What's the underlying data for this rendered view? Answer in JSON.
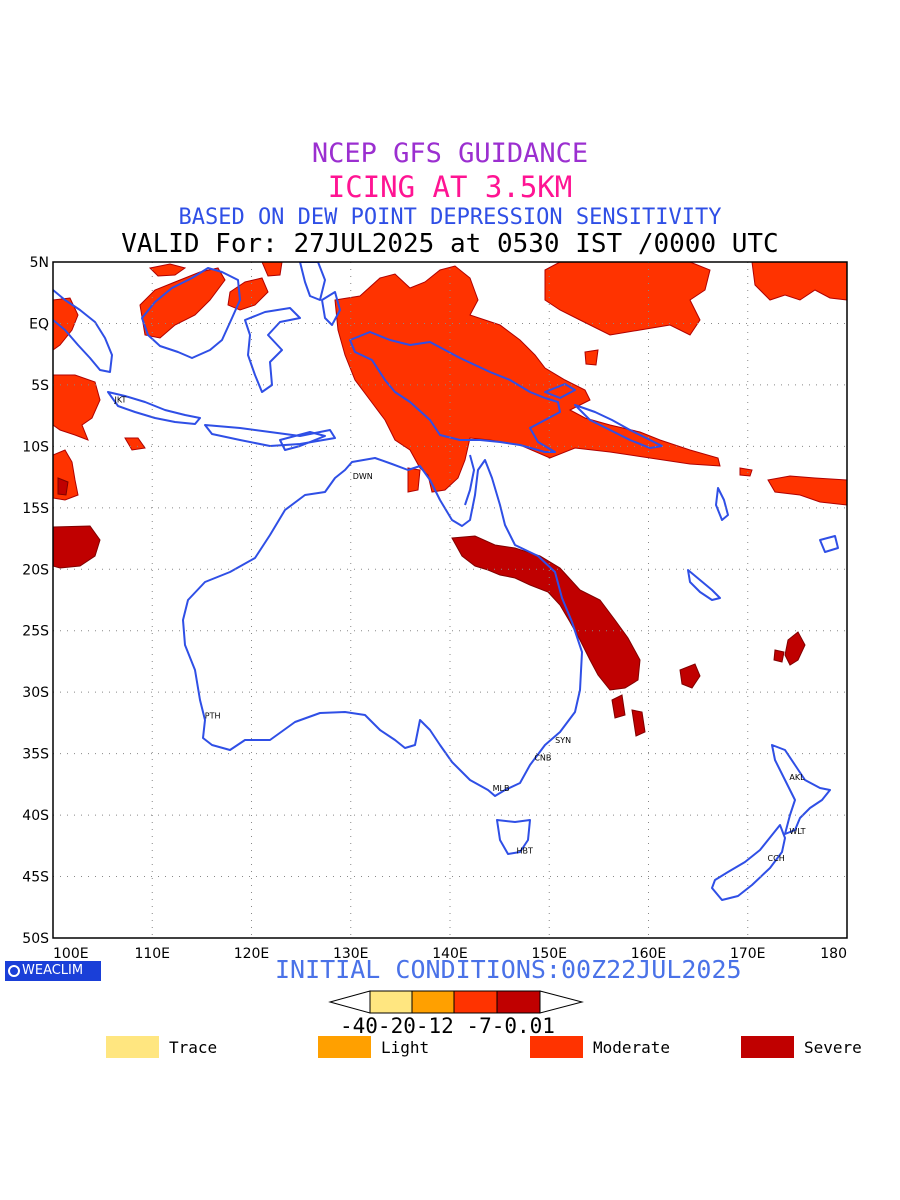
{
  "header": {
    "line1": "NCEP GFS GUIDANCE",
    "line2": "ICING AT 3.5KM",
    "line3": "BASED ON DEW POINT DEPRESSION SENSITIVITY",
    "line4": "VALID For: 27JUL2025 at 0530 IST /0000 UTC"
  },
  "colors": {
    "title1": "#9b2fd0",
    "title2": "#ff1493",
    "title3": "#2f4fe6",
    "coast": "#2f4fe6",
    "init": "#4a72e8",
    "trace": "#ffe680",
    "light": "#ffa000",
    "moderate": "#ff3300",
    "severe": "#c00000"
  },
  "map": {
    "lat_labels": [
      "5N",
      "EQ",
      "5S",
      "10S",
      "15S",
      "20S",
      "25S",
      "30S",
      "35S",
      "40S",
      "45S",
      "50S"
    ],
    "lon_labels": [
      "100E",
      "110E",
      "120E",
      "130E",
      "140E",
      "150E",
      "160E",
      "170E",
      "180"
    ],
    "cities": [
      {
        "name": "JKT",
        "lon": 106.8,
        "lat": -6.2
      },
      {
        "name": "DWN",
        "lon": 130.8,
        "lat": -12.4
      },
      {
        "name": "PTH",
        "lon": 115.9,
        "lat": -31.9
      },
      {
        "name": "SYN",
        "lon": 151.2,
        "lat": -33.9
      },
      {
        "name": "CNB",
        "lon": 149.1,
        "lat": -35.3
      },
      {
        "name": "MLB",
        "lon": 144.9,
        "lat": -37.8
      },
      {
        "name": "HBT",
        "lon": 147.3,
        "lat": -42.9
      },
      {
        "name": "AKL",
        "lon": 174.8,
        "lat": -36.9
      },
      {
        "name": "WLT",
        "lon": 174.8,
        "lat": -41.3
      },
      {
        "name": "CCH",
        "lon": 172.6,
        "lat": -43.5
      }
    ]
  },
  "brand": "WEACLIM",
  "initial_conditions": "INITIAL CONDITIONS:00Z22JUL2025",
  "colorbar": {
    "tick_labels": "-40-20-12 -7-0.01"
  },
  "legend": [
    {
      "label": "Trace",
      "color": "#ffe680"
    },
    {
      "label": "Light",
      "color": "#ffa000"
    },
    {
      "label": "Moderate",
      "color": "#ff3300"
    },
    {
      "label": "Severe",
      "color": "#c00000"
    }
  ]
}
